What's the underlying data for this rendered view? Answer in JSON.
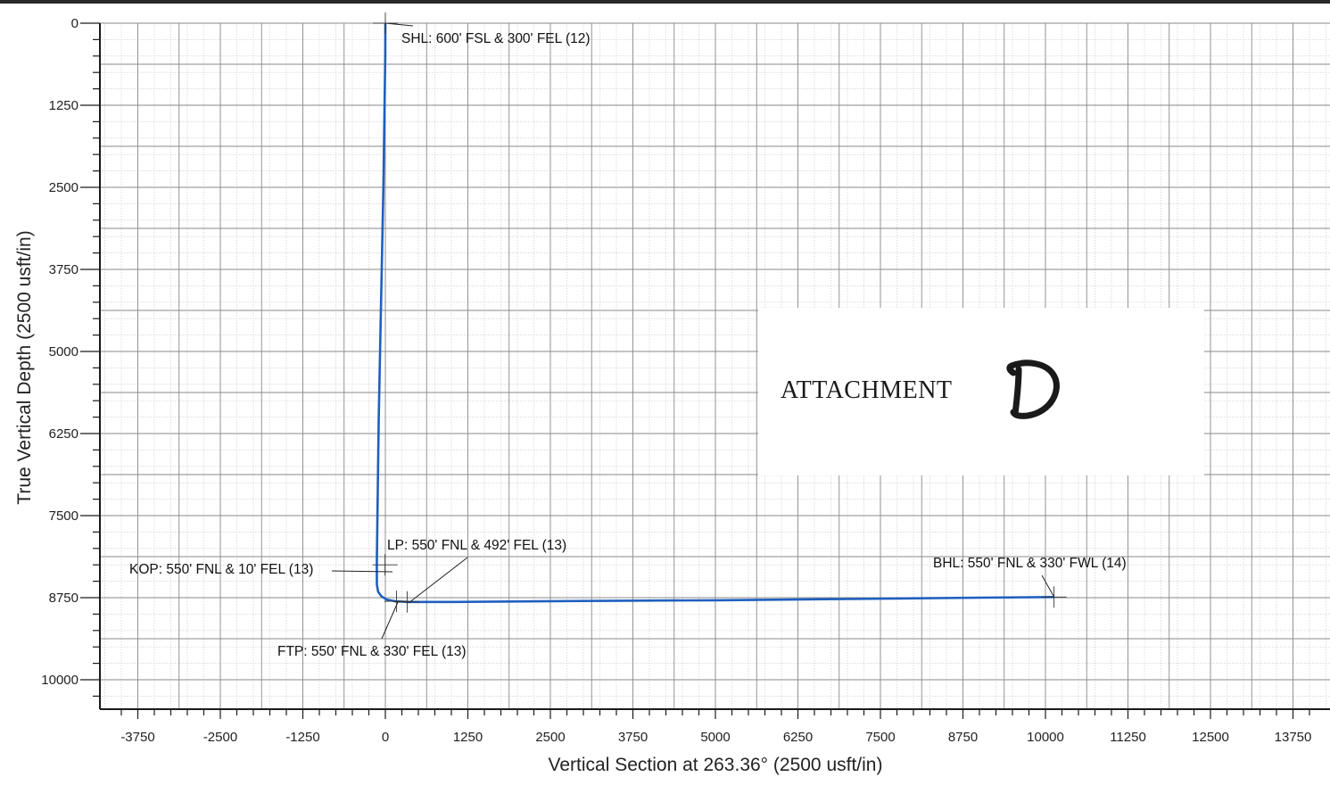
{
  "chart_data": {
    "type": "line",
    "xlabel": "Vertical Section at 263.36° (2500 usft/in)",
    "ylabel": "True Vertical Depth (2500 usft/in)",
    "xlim": [
      -4300,
      14100
    ],
    "ylim": [
      10500,
      0
    ],
    "x_ticks": [
      -3750,
      -2500,
      -1250,
      0,
      1250,
      2500,
      3750,
      5000,
      6250,
      7500,
      8750,
      10000,
      11250,
      12500,
      13750
    ],
    "y_ticks": [
      0,
      1250,
      2500,
      3750,
      5000,
      6250,
      7500,
      8750,
      10000
    ],
    "grid": true,
    "series": [
      {
        "color": "#1f5fbf",
        "x": [
          0,
          -2,
          -30,
          -100,
          -130,
          -128,
          -110,
          -60,
          20,
          150,
          330,
          1000,
          3000,
          5000,
          7000,
          9000,
          10130
        ],
        "y": [
          0,
          500,
          2500,
          6000,
          8250,
          8550,
          8660,
          8730,
          8780,
          8805,
          8815,
          8815,
          8800,
          8790,
          8770,
          8750,
          8740
        ]
      }
    ],
    "annotations": [
      {
        "label": "SHL: 600' FSL & 300' FEL (12)",
        "x": 0,
        "y": 0
      },
      {
        "label": "KOP: 550' FNL & 10' FEL (13)",
        "x": -5,
        "y": 8250
      },
      {
        "label": "LP: 550' FNL & 492' FEL (13)",
        "x": 330,
        "y": 8815
      },
      {
        "label": "FTP: 550' FNL & 330' FEL (13)",
        "x": 170,
        "y": 8805
      },
      {
        "label": "BHL: 550' FNL & 330' FWL (14)",
        "x": 10130,
        "y": 8740
      }
    ]
  },
  "attachment": {
    "text": "ATTACHMENT",
    "letter": "D"
  }
}
